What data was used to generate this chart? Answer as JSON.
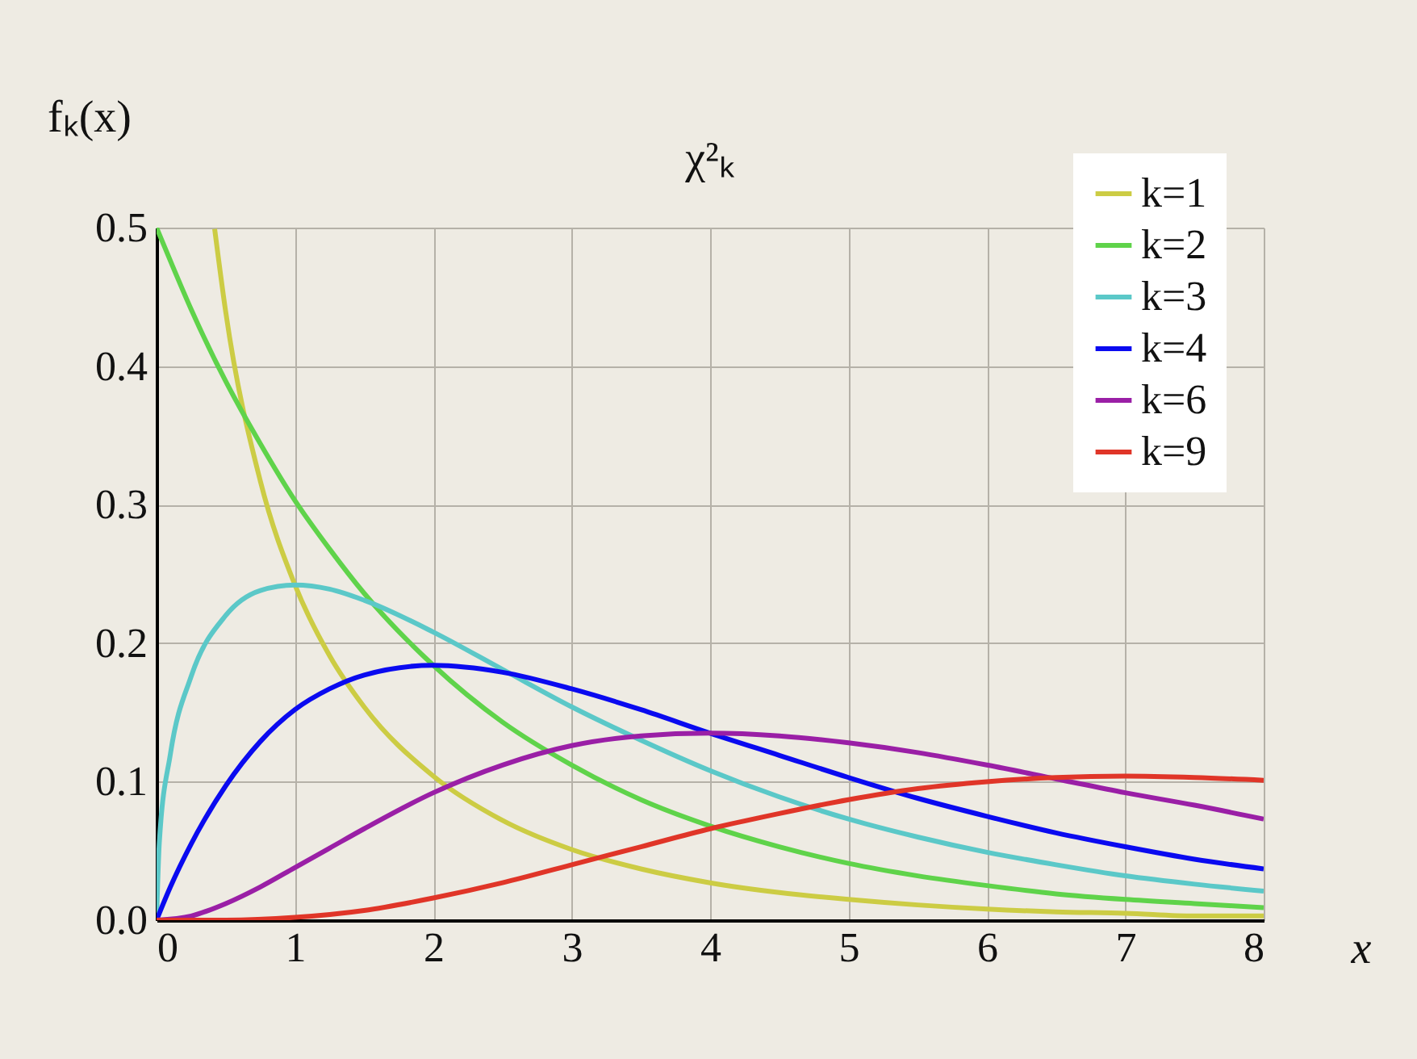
{
  "chart_data": {
    "type": "line",
    "title": "χ²ₖ",
    "xlabel": "x",
    "ylabel": "fₖ(x)",
    "xlim": [
      0,
      8
    ],
    "ylim": [
      0,
      0.5
    ],
    "xticks": [
      0,
      1,
      2,
      3,
      4,
      5,
      6,
      7,
      8
    ],
    "yticks": [
      {
        "value": 0,
        "label": "0.0"
      },
      0.1,
      0.2,
      0.3,
      0.4,
      0.5
    ],
    "grid": true,
    "legend": "top right",
    "series": [
      {
        "name": "k=1",
        "color": "#cccc44",
        "x": [
          0.42,
          0.5,
          0.75,
          1,
          1.25,
          1.5,
          2,
          2.5,
          3,
          3.5,
          4,
          4.5,
          5,
          5.5,
          6,
          6.5,
          7,
          7.5,
          8
        ],
        "values": [
          0.499,
          0.439,
          0.317,
          0.242,
          0.191,
          0.154,
          0.104,
          0.072,
          0.051,
          0.037,
          0.027,
          0.02,
          0.015,
          0.011,
          0.008,
          0.006,
          0.005,
          0.003,
          0.003
        ]
      },
      {
        "name": "k=2",
        "color": "#5fd34a",
        "x": [
          0,
          0.1,
          0.25,
          0.5,
          0.75,
          1,
          1.25,
          1.5,
          2,
          2.5,
          3,
          3.5,
          4,
          4.5,
          5,
          5.5,
          6,
          6.5,
          7,
          7.5,
          8
        ],
        "values": [
          0.5,
          0.476,
          0.441,
          0.389,
          0.344,
          0.303,
          0.268,
          0.236,
          0.184,
          0.143,
          0.112,
          0.087,
          0.068,
          0.053,
          0.041,
          0.032,
          0.025,
          0.019,
          0.015,
          0.012,
          0.009
        ]
      },
      {
        "name": "k=3",
        "color": "#5bc8c8",
        "x": [
          0,
          0.02,
          0.1,
          0.25,
          0.5,
          0.75,
          1,
          1.25,
          1.5,
          2,
          2.5,
          3,
          3.5,
          4,
          4.5,
          5,
          5.5,
          6,
          6.5,
          7,
          7.5,
          8
        ],
        "values": [
          0,
          0.056,
          0.12,
          0.176,
          0.22,
          0.238,
          0.242,
          0.239,
          0.231,
          0.208,
          0.181,
          0.154,
          0.13,
          0.108,
          0.089,
          0.073,
          0.06,
          0.049,
          0.04,
          0.032,
          0.026,
          0.021
        ]
      },
      {
        "name": "k=4",
        "color": "#0a0af0",
        "x": [
          0,
          0.1,
          0.25,
          0.5,
          0.75,
          1,
          1.25,
          1.5,
          2,
          2.5,
          3,
          3.5,
          4,
          4.5,
          5,
          5.5,
          6,
          6.5,
          7,
          7.5,
          8
        ],
        "values": [
          0,
          0.024,
          0.055,
          0.097,
          0.129,
          0.152,
          0.167,
          0.177,
          0.184,
          0.179,
          0.167,
          0.152,
          0.135,
          0.119,
          0.103,
          0.088,
          0.075,
          0.063,
          0.053,
          0.044,
          0.037
        ]
      },
      {
        "name": "k=6",
        "color": "#9a1fa6",
        "x": [
          0,
          0.25,
          0.5,
          0.75,
          1,
          1.25,
          1.5,
          2,
          2.5,
          3,
          3.5,
          4,
          4.5,
          5,
          5.5,
          6,
          6.5,
          7,
          7.5,
          8
        ],
        "values": [
          0,
          0.003,
          0.012,
          0.024,
          0.038,
          0.052,
          0.066,
          0.092,
          0.112,
          0.126,
          0.133,
          0.135,
          0.133,
          0.128,
          0.121,
          0.112,
          0.102,
          0.092,
          0.083,
          0.073
        ]
      },
      {
        "name": "k=9",
        "color": "#e03528",
        "x": [
          0,
          0.5,
          1,
          1.5,
          2,
          2.5,
          3,
          3.5,
          4,
          4.5,
          5,
          5.5,
          6,
          6.5,
          7,
          7.5,
          8
        ],
        "values": [
          0,
          0.0,
          0.002,
          0.007,
          0.016,
          0.027,
          0.04,
          0.053,
          0.066,
          0.077,
          0.087,
          0.095,
          0.1,
          0.103,
          0.104,
          0.103,
          0.101
        ]
      }
    ]
  }
}
